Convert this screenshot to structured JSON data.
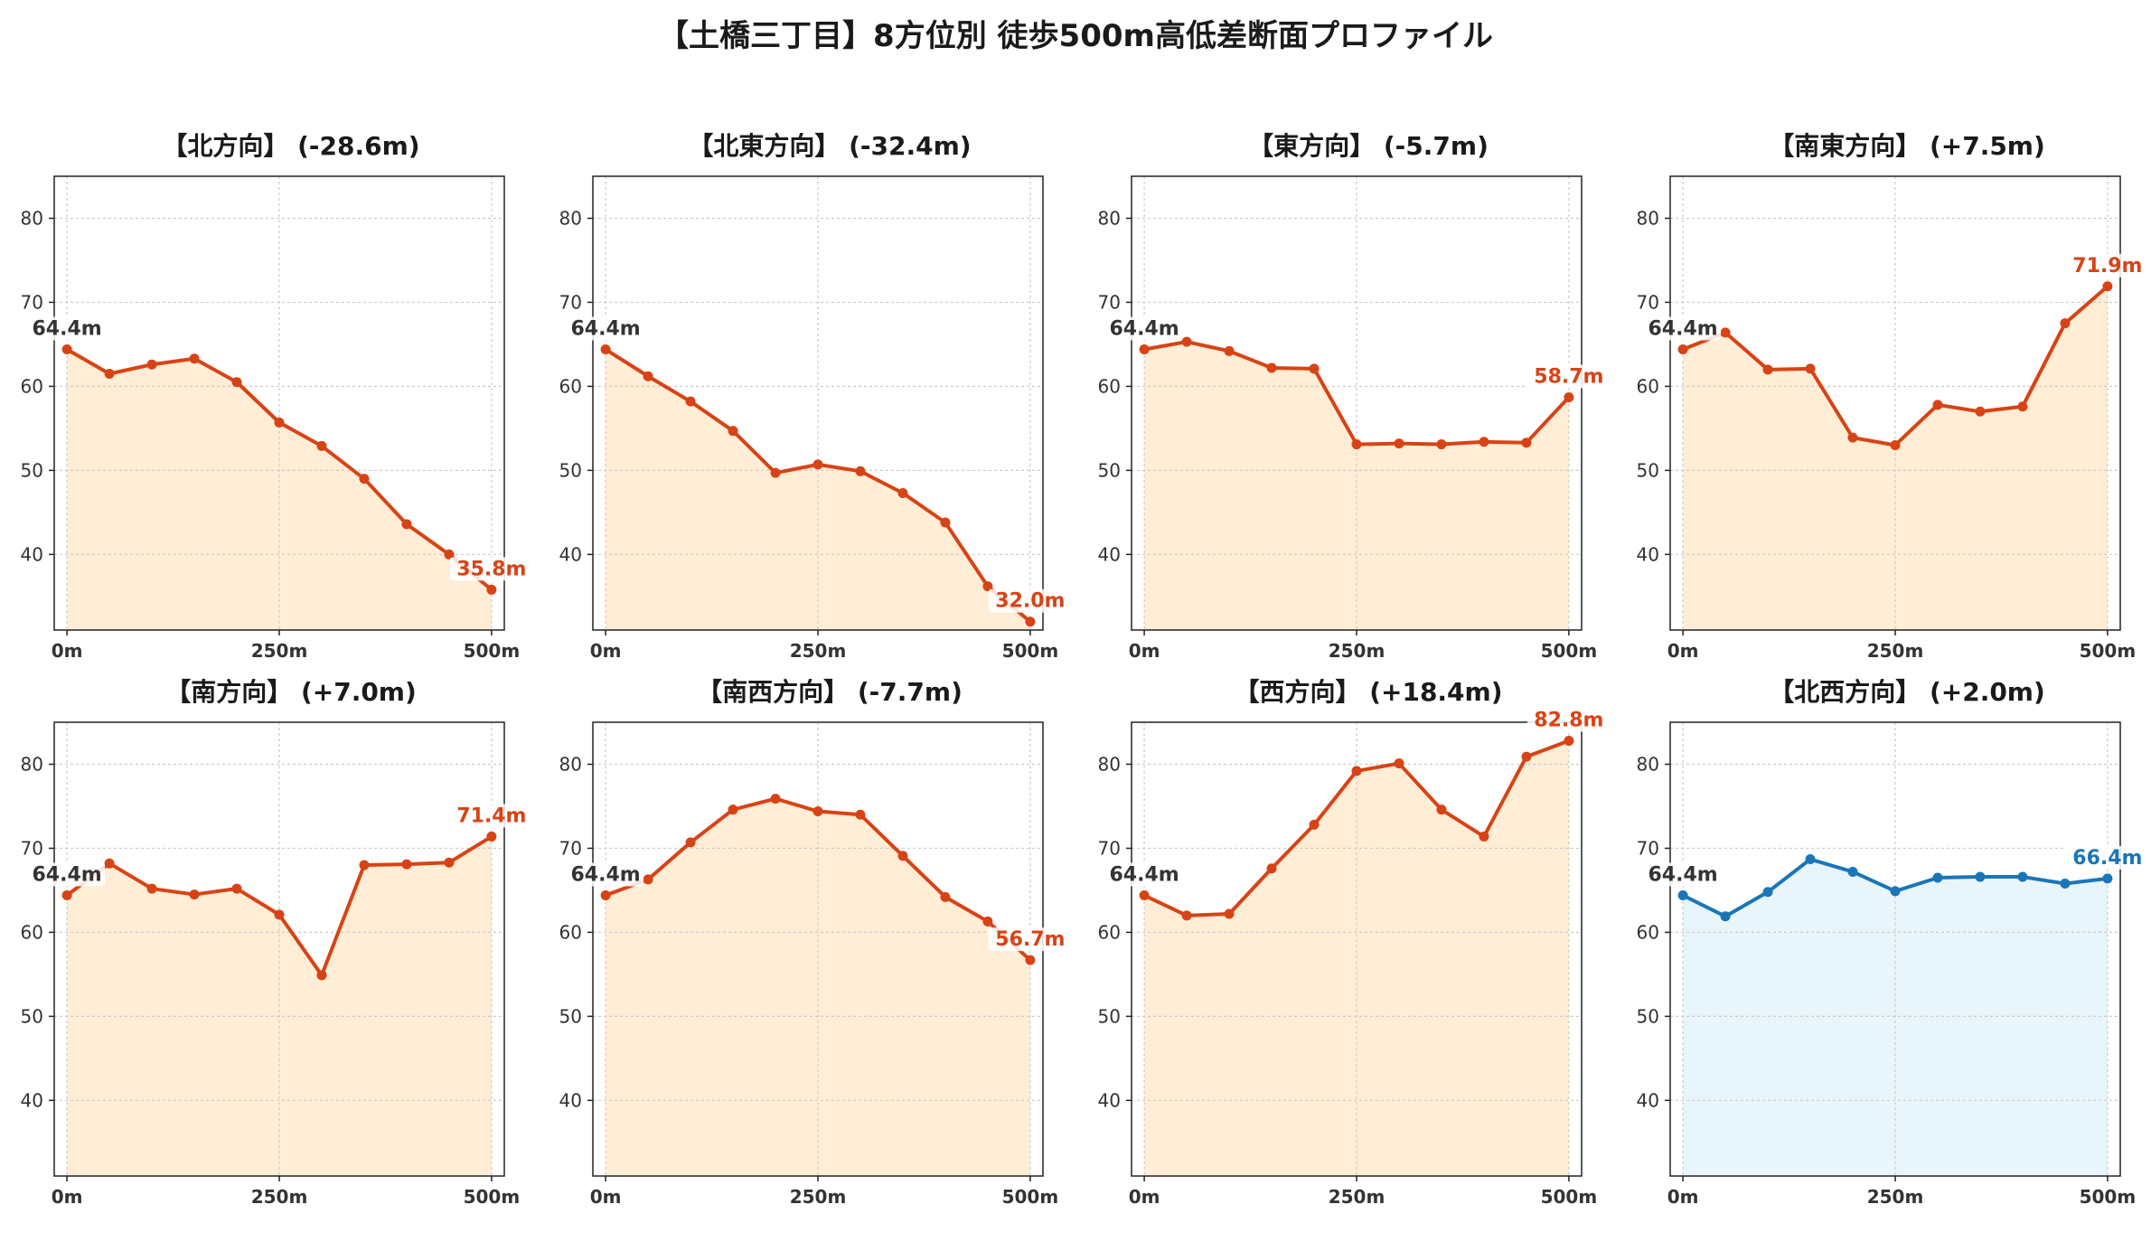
{
  "title": "【土橋三丁目】8方位別 徒歩500m高低差断面プロファイル",
  "colors": {
    "down_line": "#d84315",
    "down_fill": "#ffedd5",
    "up_line": "#1976b8",
    "up_fill": "#e8f5fb",
    "start_label": "#333333",
    "grid": "#cccccc",
    "axis": "#222222"
  },
  "chart_data": [
    {
      "type": "area",
      "title": "【北方向】 (-28.6m)",
      "color_scheme": "red",
      "x": [
        0,
        50,
        100,
        150,
        200,
        250,
        300,
        350,
        400,
        450,
        500
      ],
      "y": [
        64.4,
        61.5,
        62.6,
        63.3,
        60.5,
        55.7,
        52.9,
        49.0,
        43.6,
        40.0,
        35.8
      ],
      "start_label": "64.4m",
      "end_label": "35.8m",
      "xticks": [
        "0m",
        "250m",
        "500m"
      ],
      "yticks": [
        40,
        50,
        60,
        70,
        80
      ],
      "ylim": [
        31,
        85
      ],
      "xlim": [
        -15,
        515
      ],
      "grid": true
    },
    {
      "type": "area",
      "title": "【北東方向】 (-32.4m)",
      "color_scheme": "red",
      "x": [
        0,
        50,
        100,
        150,
        200,
        250,
        300,
        350,
        400,
        450,
        500
      ],
      "y": [
        64.4,
        61.2,
        58.2,
        54.7,
        49.7,
        50.7,
        49.9,
        47.3,
        43.8,
        36.2,
        32.0
      ],
      "start_label": "64.4m",
      "end_label": "32.0m",
      "xticks": [
        "0m",
        "250m",
        "500m"
      ],
      "yticks": [
        40,
        50,
        60,
        70,
        80
      ],
      "ylim": [
        31,
        85
      ],
      "xlim": [
        -15,
        515
      ],
      "grid": true
    },
    {
      "type": "area",
      "title": "【東方向】 (-5.7m)",
      "color_scheme": "red",
      "x": [
        0,
        50,
        100,
        150,
        200,
        250,
        300,
        350,
        400,
        450,
        500
      ],
      "y": [
        64.4,
        65.3,
        64.2,
        62.2,
        62.1,
        53.1,
        53.2,
        53.1,
        53.4,
        53.3,
        58.7
      ],
      "start_label": "64.4m",
      "end_label": "58.7m",
      "xticks": [
        "0m",
        "250m",
        "500m"
      ],
      "yticks": [
        40,
        50,
        60,
        70,
        80
      ],
      "ylim": [
        31,
        85
      ],
      "xlim": [
        -15,
        515
      ],
      "grid": true
    },
    {
      "type": "area",
      "title": "【南東方向】 (+7.5m)",
      "color_scheme": "red",
      "x": [
        0,
        50,
        100,
        150,
        200,
        250,
        300,
        350,
        400,
        450,
        500
      ],
      "y": [
        64.4,
        66.4,
        62.0,
        62.1,
        53.9,
        53.0,
        57.8,
        57.0,
        57.6,
        67.5,
        71.9
      ],
      "start_label": "64.4m",
      "end_label": "71.9m",
      "xticks": [
        "0m",
        "250m",
        "500m"
      ],
      "yticks": [
        40,
        50,
        60,
        70,
        80
      ],
      "ylim": [
        31,
        85
      ],
      "xlim": [
        -15,
        515
      ],
      "grid": true
    },
    {
      "type": "area",
      "title": "【南方向】 (+7.0m)",
      "color_scheme": "red",
      "x": [
        0,
        50,
        100,
        150,
        200,
        250,
        300,
        350,
        400,
        450,
        500
      ],
      "y": [
        64.4,
        68.2,
        65.2,
        64.5,
        65.2,
        62.1,
        54.9,
        68.0,
        68.1,
        68.3,
        71.4
      ],
      "start_label": "64.4m",
      "end_label": "71.4m",
      "xticks": [
        "0m",
        "250m",
        "500m"
      ],
      "yticks": [
        40,
        50,
        60,
        70,
        80
      ],
      "ylim": [
        31,
        85
      ],
      "xlim": [
        -15,
        515
      ],
      "grid": true
    },
    {
      "type": "area",
      "title": "【南西方向】 (-7.7m)",
      "color_scheme": "red",
      "x": [
        0,
        50,
        100,
        150,
        200,
        250,
        300,
        350,
        400,
        450,
        500
      ],
      "y": [
        64.4,
        66.3,
        70.7,
        74.6,
        75.9,
        74.4,
        74.0,
        69.1,
        64.2,
        61.3,
        56.7
      ],
      "start_label": "64.4m",
      "end_label": "56.7m",
      "xticks": [
        "0m",
        "250m",
        "500m"
      ],
      "yticks": [
        40,
        50,
        60,
        70,
        80
      ],
      "ylim": [
        31,
        85
      ],
      "xlim": [
        -15,
        515
      ],
      "grid": true
    },
    {
      "type": "area",
      "title": "【西方向】 (+18.4m)",
      "color_scheme": "red",
      "x": [
        0,
        50,
        100,
        150,
        200,
        250,
        300,
        350,
        400,
        450,
        500
      ],
      "y": [
        64.4,
        62.0,
        62.2,
        67.6,
        72.8,
        79.2,
        80.1,
        74.6,
        71.4,
        80.9,
        82.8
      ],
      "start_label": "64.4m",
      "end_label": "82.8m",
      "xticks": [
        "0m",
        "250m",
        "500m"
      ],
      "yticks": [
        40,
        50,
        60,
        70,
        80
      ],
      "ylim": [
        31,
        85
      ],
      "xlim": [
        -15,
        515
      ],
      "grid": true
    },
    {
      "type": "area",
      "title": "【北西方向】 (+2.0m)",
      "color_scheme": "blue",
      "x": [
        0,
        50,
        100,
        150,
        200,
        250,
        300,
        350,
        400,
        450,
        500
      ],
      "y": [
        64.4,
        61.9,
        64.8,
        68.7,
        67.2,
        64.9,
        66.5,
        66.6,
        66.6,
        65.8,
        66.4
      ],
      "start_label": "64.4m",
      "end_label": "66.4m",
      "xticks": [
        "0m",
        "250m",
        "500m"
      ],
      "yticks": [
        40,
        50,
        60,
        70,
        80
      ],
      "ylim": [
        31,
        85
      ],
      "xlim": [
        -15,
        515
      ],
      "grid": true
    }
  ]
}
